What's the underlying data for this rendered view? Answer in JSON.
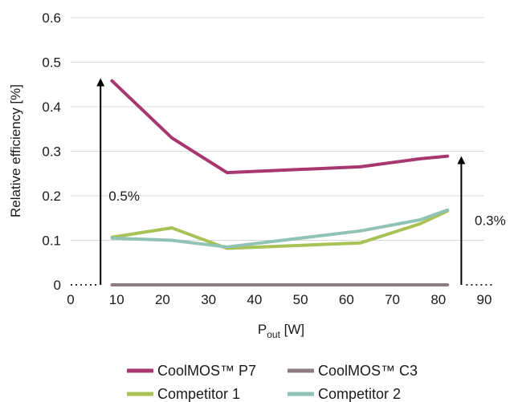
{
  "chart_data": {
    "type": "line",
    "xlabel": {
      "main": "P",
      "sub": "out",
      "unit": " [W]"
    },
    "ylabel": "Relative efficiency [%]",
    "xlim": [
      0,
      90
    ],
    "ylim": [
      0,
      0.6
    ],
    "xticks": [
      "0",
      "10",
      "20",
      "30",
      "40",
      "50",
      "60",
      "70",
      "80",
      "90"
    ],
    "yticks": [
      "0",
      "0.1",
      "0.2",
      "0.3",
      "0.4",
      "0.5",
      "0.6"
    ],
    "grid": "horizontal",
    "legend_position": "bottom",
    "series": [
      {
        "name": "CoolMOS™ P7",
        "color": "#a8366f",
        "x": [
          9,
          22,
          34,
          63,
          76,
          82
        ],
        "y": [
          0.458,
          0.33,
          0.252,
          0.265,
          0.283,
          0.289
        ]
      },
      {
        "name": "CoolMOS™ C3",
        "color": "#8e7b82",
        "x": [
          9,
          82
        ],
        "y": [
          0,
          0
        ]
      },
      {
        "name": "Competitor 1",
        "color": "#a8c256",
        "x": [
          9,
          22,
          34,
          63,
          76,
          82
        ],
        "y": [
          0.107,
          0.128,
          0.082,
          0.094,
          0.137,
          0.166
        ]
      },
      {
        "name": "Competitor 2",
        "color": "#90c2b5",
        "x": [
          9,
          22,
          34,
          63,
          76,
          82
        ],
        "y": [
          0.105,
          0.1,
          0.085,
          0.121,
          0.146,
          0.168
        ]
      }
    ],
    "annotations": [
      {
        "label": "0.5%",
        "x": 6.5
      },
      {
        "label": "0.3%",
        "x": 85
      }
    ]
  }
}
